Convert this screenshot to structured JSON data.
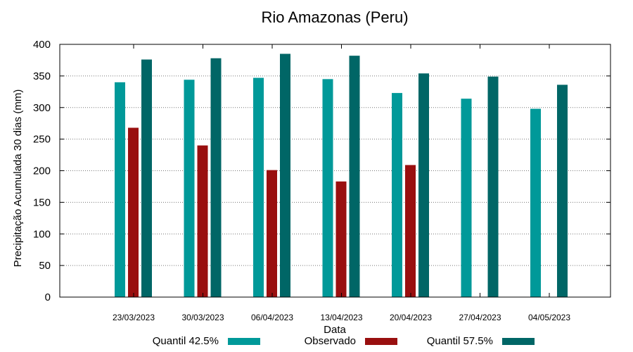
{
  "chart_data": {
    "type": "bar",
    "title": "Rio Amazonas (Peru)",
    "xlabel": "Data",
    "ylabel": "Precipitação Acumulada 30 dias (mm)",
    "ylim": [
      0,
      400
    ],
    "yticks": [
      0,
      50,
      100,
      150,
      200,
      250,
      300,
      350,
      400
    ],
    "grid": true,
    "categories": [
      "23/03/2023",
      "30/03/2023",
      "06/04/2023",
      "13/04/2023",
      "20/04/2023",
      "27/04/2023",
      "04/05/2023"
    ],
    "series": [
      {
        "name": "Quantil 42.5%",
        "color": "#009999",
        "values": [
          340,
          344,
          347,
          345,
          323,
          314,
          298
        ]
      },
      {
        "name": "Observado",
        "color": "#990f0f",
        "values": [
          268,
          240,
          201,
          183,
          209,
          null,
          null
        ]
      },
      {
        "name": "Quantil 57.5%",
        "color": "#006666",
        "values": [
          376,
          378,
          385,
          382,
          354,
          349,
          336
        ]
      }
    ],
    "legend_position": "bottom"
  }
}
